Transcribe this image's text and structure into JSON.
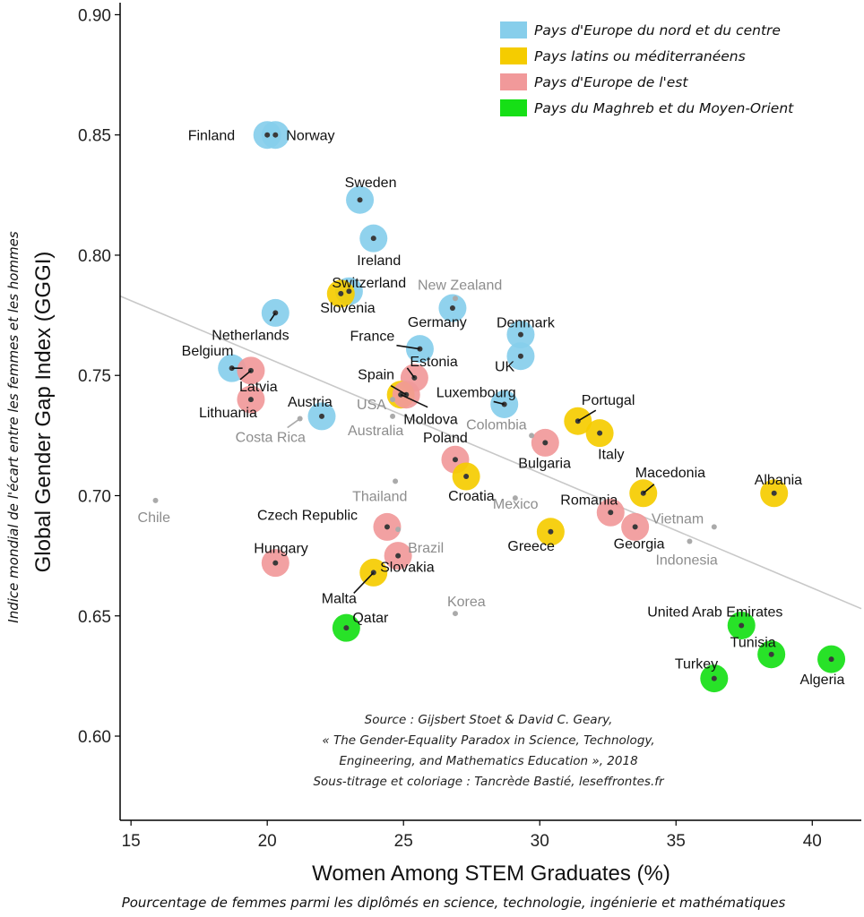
{
  "chart_data": {
    "type": "scatter",
    "xlabel": "Women Among STEM Graduates (%)",
    "ylabel": "Global Gender Gap Index (GGGI)",
    "xlabel_fr": "Pourcentage de femmes parmi les diplômés en science, technologie, ingénierie et mathématiques",
    "ylabel_fr": "Indice mondial de l'écart entre les femmes et les hommes",
    "xlim": [
      14.6,
      41.8
    ],
    "ylim": [
      0.565,
      0.905
    ],
    "xticks": [
      15,
      20,
      25,
      30,
      35,
      40
    ],
    "yticks": [
      0.6,
      0.65,
      0.7,
      0.75,
      0.8,
      0.85,
      0.9
    ],
    "trendline": {
      "x": [
        14.6,
        41.8
      ],
      "y": [
        0.783,
        0.653
      ]
    },
    "legend": [
      {
        "key": "north",
        "label": "Pays d'Europe du nord et du centre",
        "color": "#87CEEB"
      },
      {
        "key": "latin",
        "label": "Pays latins ou méditerranéens",
        "color": "#F5CC00"
      },
      {
        "key": "east",
        "label": "Pays d'Europe de l'est",
        "color": "#F1999A"
      },
      {
        "key": "mena",
        "label": "Pays du Maghreb et du Moyen-Orient",
        "color": "#16DF16"
      }
    ],
    "colors": {
      "north": "#87CEEB",
      "latin": "#F5CC00",
      "east": "#F1999A",
      "mena": "#16DF16",
      "other": "#aaaaaa",
      "trend": "#c8c8c8"
    },
    "points": [
      {
        "name": "Finland",
        "x": 20.0,
        "y": 0.85,
        "group": "north"
      },
      {
        "name": "Norway",
        "x": 20.3,
        "y": 0.85,
        "group": "north"
      },
      {
        "name": "Sweden",
        "x": 23.4,
        "y": 0.823,
        "group": "north"
      },
      {
        "name": "Ireland",
        "x": 23.9,
        "y": 0.807,
        "group": "north"
      },
      {
        "name": "Switzerland",
        "x": 23.0,
        "y": 0.785,
        "group": "north"
      },
      {
        "name": "Slovenia",
        "x": 22.7,
        "y": 0.784,
        "group": "latin"
      },
      {
        "name": "Netherlands",
        "x": 20.3,
        "y": 0.776,
        "group": "north"
      },
      {
        "name": "New Zealand",
        "x": 26.9,
        "y": 0.782,
        "group": "other"
      },
      {
        "name": "Germany",
        "x": 26.8,
        "y": 0.778,
        "group": "north"
      },
      {
        "name": "Denmark",
        "x": 29.3,
        "y": 0.767,
        "group": "north"
      },
      {
        "name": "France",
        "x": 25.6,
        "y": 0.761,
        "group": "north"
      },
      {
        "name": "UK",
        "x": 29.3,
        "y": 0.758,
        "group": "north"
      },
      {
        "name": "Belgium",
        "x": 18.7,
        "y": 0.753,
        "group": "north"
      },
      {
        "name": "Latvia",
        "x": 19.4,
        "y": 0.752,
        "group": "east"
      },
      {
        "name": "Estonia",
        "x": 25.4,
        "y": 0.749,
        "group": "east"
      },
      {
        "name": "Spain",
        "x": 24.9,
        "y": 0.742,
        "group": "latin"
      },
      {
        "name": "Moldova",
        "x": 25.1,
        "y": 0.742,
        "group": "east"
      },
      {
        "name": "Luxembourg",
        "x": 28.7,
        "y": 0.738,
        "group": "north"
      },
      {
        "name": "Lithuania",
        "x": 19.4,
        "y": 0.74,
        "group": "east"
      },
      {
        "name": "USA",
        "x": 24.6,
        "y": 0.74,
        "group": "other"
      },
      {
        "name": "Austria",
        "x": 22.0,
        "y": 0.733,
        "group": "north"
      },
      {
        "name": "Costa Rica",
        "x": 21.2,
        "y": 0.732,
        "group": "other"
      },
      {
        "name": "Australia",
        "x": 24.6,
        "y": 0.733,
        "group": "other"
      },
      {
        "name": "Portugal",
        "x": 31.4,
        "y": 0.731,
        "group": "latin"
      },
      {
        "name": "Colombia",
        "x": 29.7,
        "y": 0.725,
        "group": "other"
      },
      {
        "name": "Italy",
        "x": 32.2,
        "y": 0.726,
        "group": "latin"
      },
      {
        "name": "Bulgaria",
        "x": 30.2,
        "y": 0.722,
        "group": "east"
      },
      {
        "name": "Poland",
        "x": 26.9,
        "y": 0.715,
        "group": "east"
      },
      {
        "name": "Croatia",
        "x": 27.3,
        "y": 0.708,
        "group": "latin"
      },
      {
        "name": "Thailand",
        "x": 24.7,
        "y": 0.706,
        "group": "other"
      },
      {
        "name": "Macedonia",
        "x": 33.8,
        "y": 0.701,
        "group": "latin"
      },
      {
        "name": "Albania",
        "x": 38.6,
        "y": 0.701,
        "group": "latin"
      },
      {
        "name": "Chile",
        "x": 15.9,
        "y": 0.698,
        "group": "other"
      },
      {
        "name": "Mexico",
        "x": 29.1,
        "y": 0.699,
        "group": "other"
      },
      {
        "name": "Romania",
        "x": 32.6,
        "y": 0.693,
        "group": "east"
      },
      {
        "name": "Vietnam",
        "x": 36.4,
        "y": 0.687,
        "group": "other"
      },
      {
        "name": "Czech Republic",
        "x": 24.4,
        "y": 0.687,
        "group": "east"
      },
      {
        "name": "Georgia",
        "x": 33.5,
        "y": 0.687,
        "group": "east"
      },
      {
        "name": "Brazil",
        "x": 24.8,
        "y": 0.686,
        "group": "other"
      },
      {
        "name": "Greece",
        "x": 30.4,
        "y": 0.685,
        "group": "latin"
      },
      {
        "name": "Indonesia",
        "x": 35.5,
        "y": 0.681,
        "group": "other"
      },
      {
        "name": "Slovakia",
        "x": 24.8,
        "y": 0.675,
        "group": "east"
      },
      {
        "name": "Hungary",
        "x": 20.3,
        "y": 0.672,
        "group": "east"
      },
      {
        "name": "Malta",
        "x": 23.9,
        "y": 0.668,
        "group": "latin"
      },
      {
        "name": "Korea",
        "x": 26.9,
        "y": 0.651,
        "group": "other"
      },
      {
        "name": "United Arab Emirates",
        "x": 37.4,
        "y": 0.646,
        "group": "mena"
      },
      {
        "name": "Qatar",
        "x": 22.9,
        "y": 0.645,
        "group": "mena"
      },
      {
        "name": "Tunisia",
        "x": 38.5,
        "y": 0.634,
        "group": "mena"
      },
      {
        "name": "Algeria",
        "x": 40.7,
        "y": 0.632,
        "group": "mena"
      },
      {
        "name": "Turkey",
        "x": 36.4,
        "y": 0.624,
        "group": "mena"
      }
    ],
    "source": [
      "Source : Gijsbert Stoet & David C. Geary,",
      "« The Gender-Equality Paradox in Science, Technology,",
      "Engineering, and Mathematics Education », 2018",
      "Sous-titrage et coloriage : Tancrède Bastié, leseffrontes.fr"
    ]
  }
}
